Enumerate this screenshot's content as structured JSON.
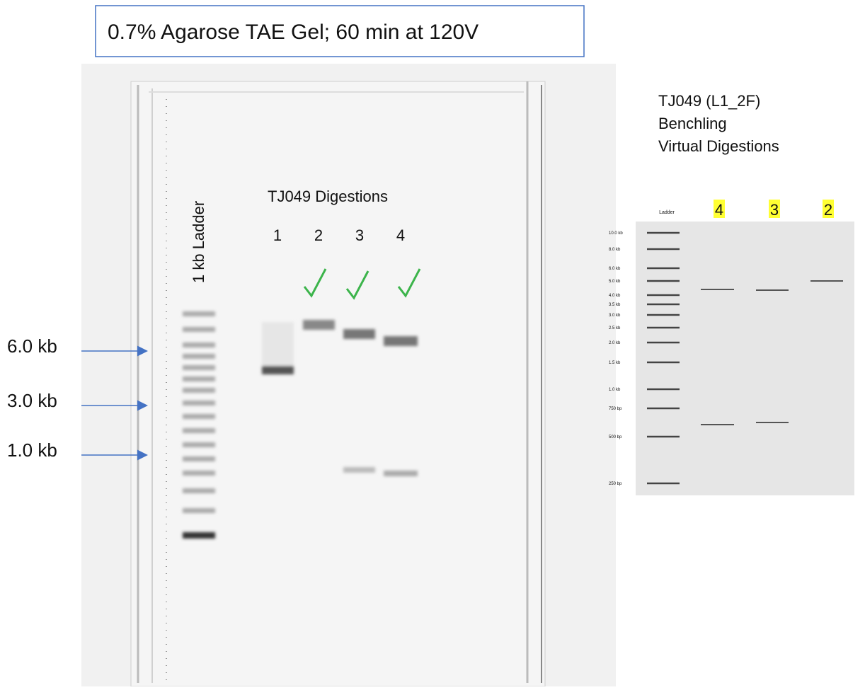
{
  "title": "0.7% Agarose TAE Gel; 60 min at 120V",
  "gel": {
    "ladder_label": "1 kb Ladder",
    "digestions_label": "TJ049 Digestions",
    "lanes": [
      "1",
      "2",
      "3",
      "4"
    ],
    "size_markers": [
      "6.0 kb",
      "3.0 kb",
      "1.0 kb"
    ]
  },
  "virtual": {
    "title_lines": [
      "TJ049 (L1_2F)",
      "Benchling",
      "Virtual Digestions"
    ],
    "ladder_header": "Ladder",
    "lane_labels": [
      "4",
      "3",
      "2"
    ],
    "ladder_sizes": [
      "10.0 kb",
      "8.0 kb",
      "6.0 kb",
      "5.0 kb",
      "4.0 kb",
      "3.5 kb",
      "3.0 kb",
      "2.5 kb",
      "2.0 kb",
      "1.5 kb",
      "1.0 kb",
      "750 bp",
      "500 bp",
      "250 bp"
    ]
  }
}
